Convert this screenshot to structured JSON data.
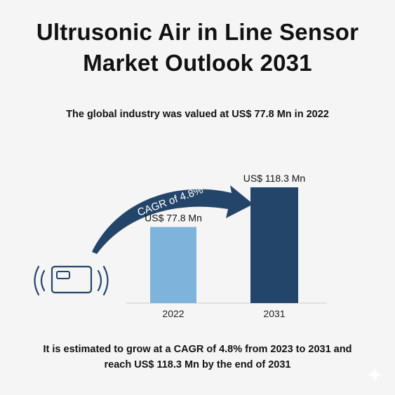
{
  "header": {
    "title_line1": "Ultrusonic Air in Line Sensor",
    "title_line2": "Market Outlook 2031",
    "subtitle": "The global industry was valued at US$ 77.8 Mn in 2022"
  },
  "footer": {
    "line1": "It is estimated to grow at a CAGR of 4.8% from 2023 to 2031 and",
    "line2": "reach US$ 118.3 Mn by the end of 2031"
  },
  "arrow_label": "CAGR of 4.8%",
  "icons": [
    "sensor-signal-icon",
    "sparkle-icon"
  ],
  "colors": {
    "bar_2022": "#7eb3dc",
    "bar_2031": "#24456a",
    "arrow": "#24456a"
  },
  "chart_data": {
    "type": "bar",
    "categories": [
      "2022",
      "2031"
    ],
    "values": [
      77.8,
      118.3
    ],
    "data_labels": [
      "US$ 77.8 Mn",
      "US$ 118.3 Mn"
    ],
    "ylim": [
      0,
      118.3
    ],
    "grid": false,
    "legend": "none"
  }
}
